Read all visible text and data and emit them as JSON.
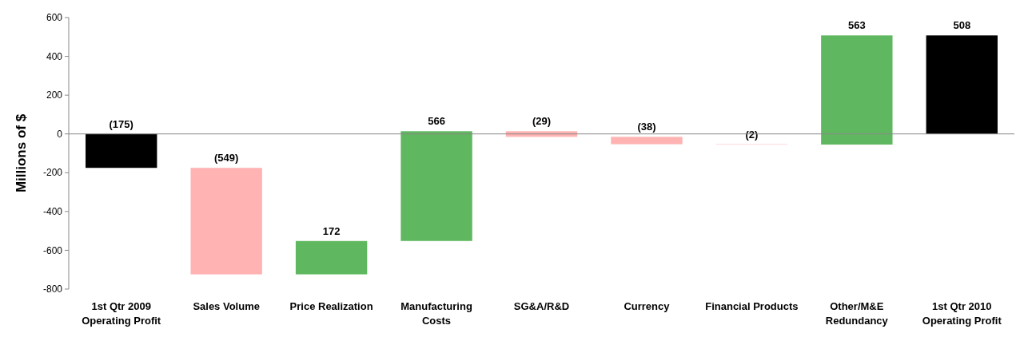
{
  "chart_data": {
    "type": "bar",
    "ylabel": "Millions of $",
    "categories": [
      "1st Qtr 2009\nOperating Profit",
      "Sales Volume",
      "Price Realization",
      "Manufacturing\nCosts",
      "SG&A/R&D",
      "Currency",
      "Financial  Products",
      "Other/M&E\nRedundancy",
      "1st Qtr 2010\nOperating Profit"
    ],
    "values": [
      -175,
      -549,
      172,
      566,
      -29,
      -38,
      -2,
      563,
      508
    ],
    "base": [
      0,
      -175,
      -724,
      -552,
      14,
      -15,
      -53,
      -55,
      0
    ],
    "colors": [
      "#000000",
      "#ffb3b3",
      "#5fb85f",
      "#5fb85f",
      "#ffb3b3",
      "#ffb3b3",
      "#ffb3b3",
      "#5fb85f",
      "#000000"
    ],
    "value_labels": [
      "(175)",
      "(549)",
      "172",
      "566",
      "(29)",
      "(38)",
      "(2)",
      "563",
      "508"
    ],
    "ylim": [
      -800,
      600
    ],
    "yticks": [
      -800,
      -600,
      -400,
      -200,
      0,
      200,
      400,
      600
    ]
  }
}
